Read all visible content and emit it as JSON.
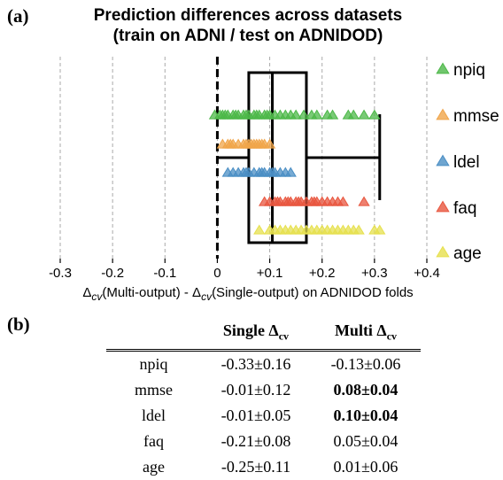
{
  "panel_a_label": "(a)",
  "panel_b_label": "(b)",
  "chart_data": {
    "type": "scatter+boxplot",
    "title_line1": "Prediction differences across datasets",
    "title_line2": "(train on ADNI / test on ADNIDOD)",
    "xlabel_parts": {
      "pre": "Δ",
      "sub1": "cv",
      "mid": "(Multi-output) - Δ",
      "sub2": "cv",
      "post": "(Single-output) on ADNIDOD folds"
    },
    "xlim": [
      -0.3,
      0.4
    ],
    "xticks": [
      -0.3,
      -0.2,
      -0.1,
      0,
      0.1,
      0.2,
      0.3,
      0.4
    ],
    "xtick_labels": [
      "-0.3",
      "-0.2",
      "-0.1",
      "0",
      "+0.1",
      "+0.2",
      "+0.3",
      "+0.4"
    ],
    "grid": "vertical dashed",
    "reference_line_x": 0,
    "boxplot": {
      "whisker_low": 0.0,
      "q1": 0.06,
      "median": 0.105,
      "q3": 0.17,
      "whisker_high": 0.31
    },
    "series": [
      {
        "name": "npiq",
        "color": "#4cb848",
        "values": [
          -0.005,
          0.005,
          0.01,
          0.015,
          0.02,
          0.03,
          0.035,
          0.04,
          0.05,
          0.055,
          0.06,
          0.07,
          0.075,
          0.08,
          0.09,
          0.095,
          0.1,
          0.11,
          0.12,
          0.13,
          0.14,
          0.15,
          0.165,
          0.18,
          0.19,
          0.21,
          0.22,
          0.25,
          0.26,
          0.28,
          0.3
        ]
      },
      {
        "name": "mmse",
        "color": "#f0a54a",
        "values": [
          0.01,
          0.02,
          0.025,
          0.03,
          0.04,
          0.05,
          0.055,
          0.06,
          0.065,
          0.07,
          0.075,
          0.08,
          0.085,
          0.09,
          0.1
        ]
      },
      {
        "name": "ldel",
        "color": "#4a8ec4",
        "values": [
          0.02,
          0.03,
          0.04,
          0.05,
          0.055,
          0.06,
          0.07,
          0.08,
          0.085,
          0.09,
          0.1,
          0.105,
          0.11,
          0.12,
          0.13,
          0.14
        ]
      },
      {
        "name": "faq",
        "color": "#e8563f",
        "values": [
          0.09,
          0.1,
          0.11,
          0.115,
          0.12,
          0.13,
          0.135,
          0.14,
          0.15,
          0.155,
          0.16,
          0.17,
          0.18,
          0.185,
          0.19,
          0.2,
          0.21,
          0.22,
          0.23,
          0.24,
          0.28
        ]
      },
      {
        "name": "age",
        "color": "#e6e04e",
        "values": [
          0.08,
          0.1,
          0.11,
          0.12,
          0.13,
          0.14,
          0.15,
          0.16,
          0.17,
          0.18,
          0.19,
          0.2,
          0.21,
          0.22,
          0.23,
          0.24,
          0.25,
          0.26,
          0.27,
          0.3,
          0.31
        ]
      }
    ]
  },
  "table": {
    "headers": {
      "single_pre": "Single Δ",
      "single_sub": "cv",
      "multi_pre": "Multi Δ",
      "multi_sub": "cv"
    },
    "rows": [
      {
        "label": "npiq",
        "single": "-0.33±0.16",
        "multi": "-0.13±0.06",
        "multi_bold": false
      },
      {
        "label": "mmse",
        "single": "-0.01±0.12",
        "multi": "0.08±0.04",
        "multi_bold": true
      },
      {
        "label": "ldel",
        "single": "-0.01±0.05",
        "multi": "0.10±0.04",
        "multi_bold": true
      },
      {
        "label": "faq",
        "single": "-0.21±0.08",
        "multi": "0.05±0.04",
        "multi_bold": false
      },
      {
        "label": "age",
        "single": "-0.25±0.11",
        "multi": "0.01±0.06",
        "multi_bold": false
      }
    ]
  }
}
